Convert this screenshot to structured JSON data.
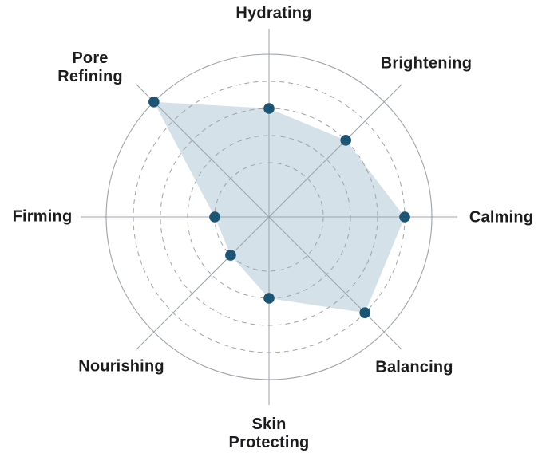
{
  "chart_data": {
    "type": "radar",
    "title": "",
    "axes": [
      "Hydrating",
      "Brightening",
      "Calming",
      "Balancing",
      "Skin Protecting",
      "Nourishing",
      "Firming",
      "Pore Refining"
    ],
    "values": [
      4,
      4,
      5,
      5,
      3,
      2,
      2,
      6
    ],
    "axis_range": [
      0,
      6
    ],
    "max": 6,
    "rings_dashed": [
      2,
      3,
      4,
      5
    ],
    "outer_ring_level": 6,
    "grid": true,
    "legend_position": "none",
    "colors": {
      "fill": "#d3dfe7",
      "point": "#1b5475",
      "grid": "#9ba3aa",
      "label": "#1c1c1e"
    }
  }
}
